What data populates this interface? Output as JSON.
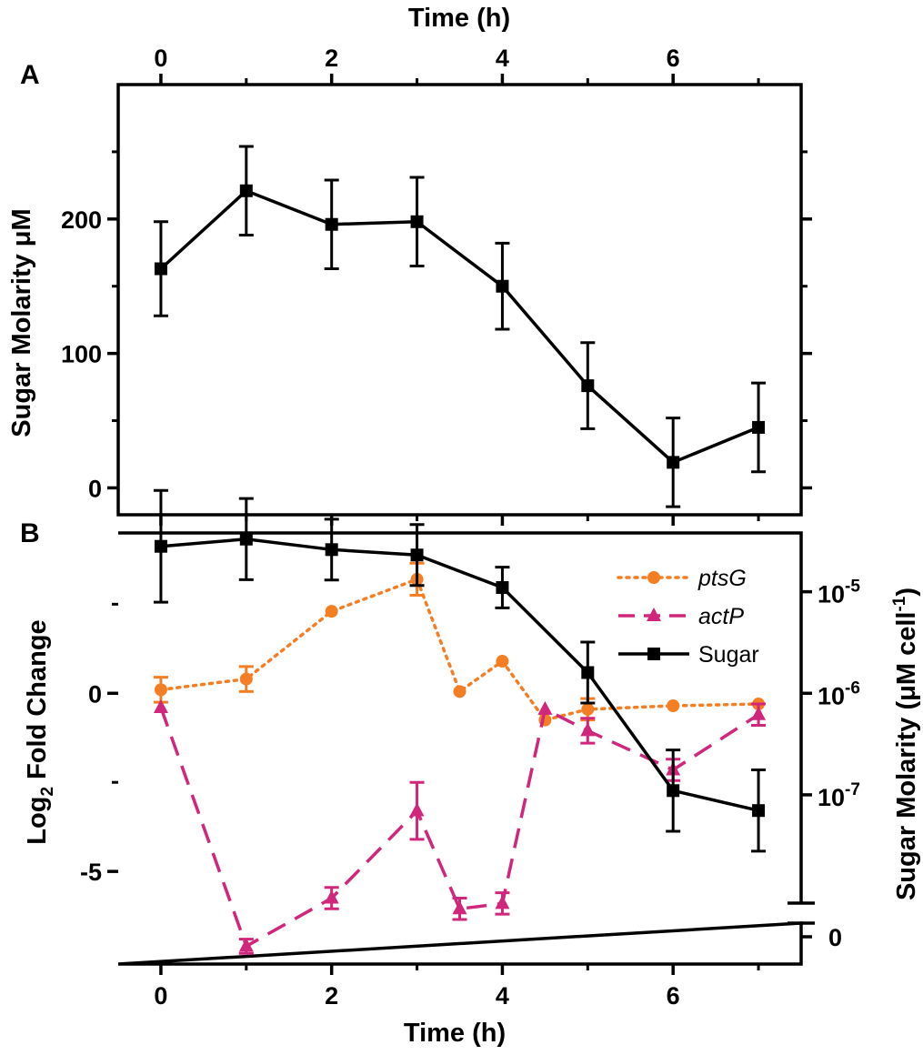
{
  "chart_data": [
    {
      "panel": "A",
      "type": "line",
      "xlabel": "Time (h)",
      "ylabel": "Sugar Molarity μM",
      "x_ticks": [
        "0",
        "2",
        "4",
        "6"
      ],
      "y_ticks": [
        "0",
        "100",
        "200"
      ],
      "xlim": [
        -0.5,
        7.5
      ],
      "ylim": [
        -20,
        300
      ],
      "series": [
        {
          "name": "Sugar",
          "color": "#000000",
          "marker": "square",
          "x": [
            0,
            1,
            2,
            3,
            4,
            5,
            6,
            7
          ],
          "y": [
            163,
            221,
            196,
            198,
            150,
            76,
            19,
            45
          ],
          "err": [
            35,
            33,
            33,
            33,
            32,
            32,
            33,
            33
          ]
        }
      ]
    },
    {
      "panel": "B",
      "type": "line",
      "xlabel": "Time (h)",
      "ylabel_main": "Log",
      "ylabel_sub": "2",
      "ylabel_rest": " Fold Change",
      "y2label_main": "Sugar Molarity (μM cell",
      "y2label_sup": "-1",
      "y2label_end": ")",
      "x_ticks": [
        "0",
        "2",
        "4",
        "6"
      ],
      "y_ticks": [
        "0",
        "-5"
      ],
      "y2_ticks": [
        {
          "base": "10",
          "exp": "-5"
        },
        {
          "base": "10",
          "exp": "-6"
        },
        {
          "base": "10",
          "exp": "-7"
        }
      ],
      "y2_zero": "0",
      "xlim": [
        -0.5,
        7.5
      ],
      "ylim": [
        -7.6,
        4.5
      ],
      "y2_log_range": [
        -7.8,
        -4.4
      ],
      "legend": [
        "ptsG",
        "actP",
        "Sugar"
      ],
      "series": [
        {
          "name": "ptsG",
          "color": "#f47e23",
          "marker": "circle",
          "style": "dotted",
          "x": [
            0,
            1,
            2,
            3,
            3.5,
            4,
            4.5,
            5,
            6,
            7
          ],
          "y": [
            0.1,
            0.4,
            2.3,
            3.2,
            0.05,
            0.9,
            -0.75,
            -0.45,
            -0.35,
            -0.3
          ],
          "err": [
            0.35,
            0.35,
            0,
            0.45,
            0,
            0,
            0,
            0.3,
            0,
            0
          ]
        },
        {
          "name": "actP",
          "color": "#d0267c",
          "marker": "triangle",
          "style": "dashed",
          "x": [
            0,
            1,
            2,
            3,
            3.5,
            4,
            4.5,
            5,
            6,
            7
          ],
          "y": [
            -0.4,
            -7.1,
            -5.75,
            -3.3,
            -6.05,
            -5.9,
            -0.45,
            -1.05,
            -2.15,
            -0.6
          ],
          "err": [
            0,
            0.2,
            0.3,
            0.8,
            0.3,
            0.3,
            0,
            0.35,
            0.3,
            0.3
          ]
        },
        {
          "name": "Sugar",
          "color": "#000000",
          "marker": "square",
          "style": "solid",
          "axis": "right-log",
          "x": [
            0,
            1,
            2,
            3,
            4,
            5,
            6,
            7
          ],
          "y": [
            2.8e-05,
            3.3e-05,
            2.6e-05,
            2.3e-05,
            1.1e-05,
            1.6e-06,
            1.1e-07,
            7e-08
          ],
          "err_log10": [
            0.55,
            0.4,
            0.3,
            0.3,
            0.2,
            0.3,
            0.4,
            0.4
          ]
        }
      ]
    }
  ]
}
